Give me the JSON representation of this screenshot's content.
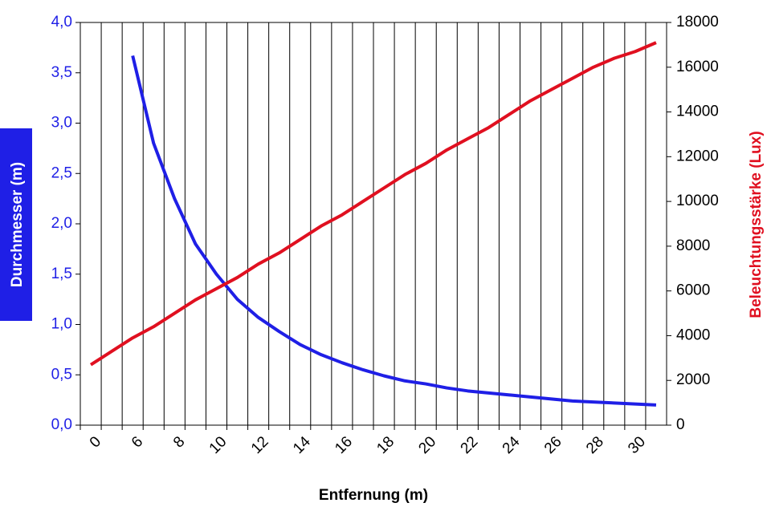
{
  "chart_data": {
    "type": "line",
    "x_label": "Entfernung (m)",
    "y_label": "Durchmesser (m)",
    "y2_label": "Beleuchtungsstärke (Lux)",
    "categories": [
      "0",
      null,
      "6",
      null,
      "8",
      null,
      "10",
      null,
      "12",
      null,
      "14",
      null,
      "16",
      null,
      "18",
      null,
      "20",
      null,
      "22",
      null,
      "24",
      null,
      "26",
      null,
      "28",
      null,
      "30",
      null
    ],
    "series": [
      {
        "name": "Durchmesser",
        "color": "#1f1fe6",
        "axis": "y",
        "values": [
          null,
          null,
          3.67,
          2.8,
          2.25,
          1.8,
          1.5,
          1.25,
          1.07,
          0.93,
          0.8,
          0.7,
          0.62,
          0.55,
          0.49,
          0.44,
          0.41,
          0.37,
          0.34,
          0.32,
          0.3,
          0.28,
          0.26,
          0.24,
          0.23,
          0.22,
          0.21,
          0.2
        ]
      },
      {
        "name": "Beleuchtungsstärke",
        "color": "#e01020",
        "axis": "y2",
        "values": [
          2700,
          3300,
          3900,
          4400,
          5000,
          5600,
          6100,
          6600,
          7200,
          7700,
          8300,
          8900,
          9400,
          10000,
          10600,
          11200,
          11700,
          12300,
          12800,
          13300,
          13900,
          14500,
          15000,
          15500,
          16000,
          16400,
          16700,
          17100
        ]
      }
    ],
    "ylim": [
      0,
      4
    ],
    "yticks": [
      {
        "value": 0,
        "label": "0,0"
      },
      {
        "value": 0.5,
        "label": "0,5"
      },
      {
        "value": 1,
        "label": "1,0"
      },
      {
        "value": 1.5,
        "label": "1,5"
      },
      {
        "value": 2,
        "label": "2,0"
      },
      {
        "value": 2.5,
        "label": "2,5"
      },
      {
        "value": 3,
        "label": "3,0"
      },
      {
        "value": 3.5,
        "label": "3,5"
      },
      {
        "value": 4,
        "label": "4,0"
      }
    ],
    "y2lim": [
      0,
      18000
    ],
    "y2ticks": [
      0,
      2000,
      4000,
      6000,
      8000,
      10000,
      12000,
      14000,
      16000,
      18000
    ],
    "grid": "vertical"
  }
}
